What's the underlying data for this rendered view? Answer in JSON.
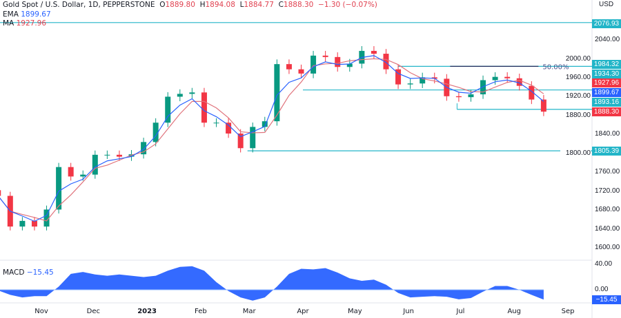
{
  "header": {
    "title": "Gold Spot / U.S. Dollar, 1D, PEPPERSTONE",
    "o_label": "O",
    "open": "1889.80",
    "h_label": "H",
    "high": "1894.08",
    "l_label": "L",
    "low": "1884.77",
    "c_label": "C",
    "close": "1888.30",
    "change": "−1.30 (−0.07%)",
    "ema_label": "EMA",
    "ema_value": "1899.67",
    "ma_label": "MA",
    "ma_value": "1927.96",
    "macd_label": "MACD",
    "macd_value": "−15.45",
    "currency": "USD"
  },
  "colors": {
    "up": "#089981",
    "down": "#f23645",
    "ema": "#2962ff",
    "ma": "#e0737c",
    "level": "#22b5c8",
    "fib": "#1e2a5a",
    "macd": "#2962ff"
  },
  "chart_data": [
    {
      "type": "candlestick",
      "title": "Gold Spot / U.S. Dollar, 1D, PEPPERSTONE",
      "ylim": [
        1600,
        2080
      ],
      "y_ticks": [
        "2040.00",
        "2000.00",
        "1960.00",
        "1920.00",
        "1880.00",
        "1840.00",
        "1800.00",
        "1760.00",
        "1720.00",
        "1680.00",
        "1640.00",
        "1600.00"
      ],
      "x_ticks": [
        {
          "label": "Nov",
          "date": "2022-11-01"
        },
        {
          "label": "Dec",
          "date": "2022-12-01"
        },
        {
          "label": "2023",
          "date": "2023-01-01"
        },
        {
          "label": "Feb",
          "date": "2023-02-01"
        },
        {
          "label": "Mar",
          "date": "2023-03-01"
        },
        {
          "label": "Apr",
          "date": "2023-04-01"
        },
        {
          "label": "May",
          "date": "2023-05-01"
        },
        {
          "label": "Jun",
          "date": "2023-06-01"
        },
        {
          "label": "Jul",
          "date": "2023-07-01"
        },
        {
          "label": "Aug",
          "date": "2023-08-01"
        },
        {
          "label": "Sep",
          "date": "2023-09-01"
        }
      ],
      "dates": [
        "2022-10-07",
        "2022-10-14",
        "2022-10-21",
        "2022-10-28",
        "2022-11-04",
        "2022-11-11",
        "2022-11-18",
        "2022-11-25",
        "2022-12-02",
        "2022-12-09",
        "2022-12-16",
        "2022-12-23",
        "2022-12-30",
        "2023-01-06",
        "2023-01-13",
        "2023-01-20",
        "2023-01-27",
        "2023-02-03",
        "2023-02-10",
        "2023-02-17",
        "2023-02-24",
        "2023-03-03",
        "2023-03-10",
        "2023-03-17",
        "2023-03-24",
        "2023-03-31",
        "2023-04-07",
        "2023-04-14",
        "2023-04-21",
        "2023-04-28",
        "2023-05-05",
        "2023-05-12",
        "2023-05-19",
        "2023-05-26",
        "2023-06-02",
        "2023-06-09",
        "2023-06-16",
        "2023-06-23",
        "2023-06-30",
        "2023-07-07",
        "2023-07-14",
        "2023-07-21",
        "2023-07-28",
        "2023-08-04",
        "2023-08-11",
        "2023-08-18"
      ],
      "closes": [
        1710,
        1645,
        1657,
        1645,
        1681,
        1771,
        1751,
        1755,
        1797,
        1797,
        1793,
        1798,
        1824,
        1865,
        1920,
        1926,
        1929,
        1865,
        1865,
        1842,
        1811,
        1856,
        1868,
        1989,
        1978,
        1969,
        2007,
        2004,
        1983,
        1990,
        2017,
        2011,
        1978,
        1946,
        1948,
        1961,
        1958,
        1921,
        1919,
        1925,
        1955,
        1962,
        1959,
        1943,
        1914,
        1888.3
      ],
      "levels": [
        {
          "value": 2076.93,
          "label": "2076.93",
          "from": "2022-10-07"
        },
        {
          "value": 1984.32,
          "label": "1984.32",
          "from": "2023-05-26"
        },
        {
          "value": 1934.3,
          "label": "1934.30",
          "from": "2023-04-01"
        },
        {
          "value": 1893.16,
          "label": "1893.16",
          "from": "2023-06-29"
        },
        {
          "value": 1805.39,
          "label": "1805.39",
          "from": "2023-02-28"
        }
      ],
      "fib": {
        "value": 1984.32,
        "label": "50.00%",
        "from": "2023-06-25",
        "to": "2023-08-15"
      },
      "tags": {
        "ma": "1927.96",
        "ema": "1899.67",
        "last": "1888.30"
      }
    },
    {
      "type": "area",
      "name": "MACD",
      "ylim": [
        -25,
        45
      ],
      "y_ticks": [
        "40.00",
        "0.00"
      ],
      "last_label": "−15.45",
      "values": [
        -2,
        -8,
        -12,
        -10,
        -10,
        5,
        25,
        28,
        24,
        22,
        24,
        22,
        20,
        22,
        30,
        36,
        37,
        30,
        12,
        -2,
        -12,
        -17,
        -12,
        5,
        25,
        33,
        32,
        34,
        27,
        18,
        14,
        16,
        8,
        -5,
        -12,
        -11,
        -10,
        -11,
        -15,
        -13,
        -3,
        6,
        6,
        0,
        -8,
        -15.45
      ]
    }
  ]
}
